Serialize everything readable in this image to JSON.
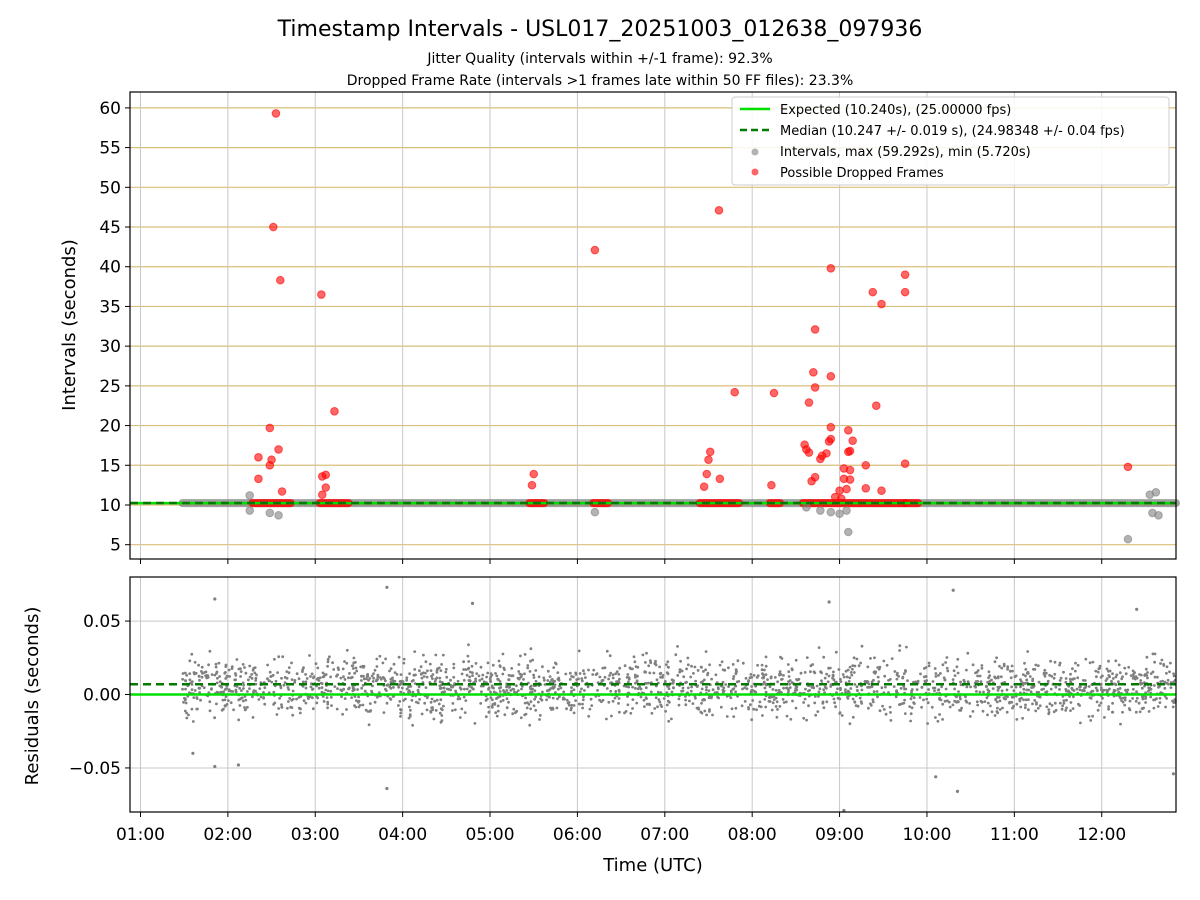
{
  "title": "Timestamp Intervals - USL017_20251003_012638_097936",
  "subtitle_1": "Jitter Quality (intervals within +/-1 frame): 92.3%",
  "subtitle_2": "Dropped Frame Rate (intervals >1 frames late within 50 FF files): 23.3%",
  "chart_data": [
    {
      "type": "scatter",
      "panel": "top",
      "xlabel": "",
      "ylabel": "Intervals (seconds)",
      "x_range_hours": [
        0.88,
        12.85
      ],
      "ylim": [
        3.2,
        62
      ],
      "yticks": [
        5,
        10,
        15,
        20,
        25,
        30,
        35,
        40,
        45,
        50,
        55,
        60
      ],
      "xticks": [
        "01:00",
        "02:00",
        "03:00",
        "04:00",
        "05:00",
        "06:00",
        "07:00",
        "08:00",
        "09:00",
        "10:00",
        "11:00",
        "12:00"
      ],
      "grid": true,
      "legend_position": "top-right",
      "expected": 10.24,
      "median": 10.247,
      "colors": {
        "expected": "#00e000",
        "median": "#007a00",
        "intervals": "#808080",
        "dropped": "#ff0000",
        "hgrid": "#d9bf77",
        "vgrid": "#c8c8c8"
      },
      "legend": [
        "Expected (10.240s), (25.00000 fps)",
        "Median (10.247 +/- 0.019 s), (24.98348 +/- 0.04 fps)",
        "Intervals, max (59.292s), min (5.720s)",
        "Possible Dropped Frames"
      ],
      "interval_bands": [
        [
          1.48,
          12.85,
          10.24
        ]
      ],
      "interval_outliers": [
        [
          2.25,
          11.2
        ],
        [
          2.25,
          9.3
        ],
        [
          2.48,
          9.0
        ],
        [
          2.58,
          8.7
        ],
        [
          6.2,
          9.1
        ],
        [
          8.62,
          9.7
        ],
        [
          8.78,
          9.3
        ],
        [
          8.9,
          9.1
        ],
        [
          9.0,
          8.9
        ],
        [
          9.08,
          9.3
        ],
        [
          9.1,
          6.6
        ],
        [
          12.3,
          5.7
        ],
        [
          12.55,
          11.3
        ],
        [
          12.62,
          11.6
        ],
        [
          12.58,
          9.0
        ],
        [
          12.65,
          8.7
        ]
      ],
      "dropped_bands": [
        [
          2.28,
          2.72,
          10.24
        ],
        [
          3.05,
          3.38,
          10.24
        ],
        [
          5.45,
          5.62,
          10.24
        ],
        [
          6.18,
          6.35,
          10.24
        ],
        [
          7.4,
          7.85,
          10.24
        ],
        [
          8.2,
          8.32,
          10.24
        ],
        [
          8.58,
          9.75,
          10.24
        ],
        [
          9.75,
          9.9,
          10.24
        ]
      ],
      "dropped_points": [
        [
          2.35,
          16.0
        ],
        [
          2.35,
          13.3
        ],
        [
          2.48,
          19.7
        ],
        [
          2.48,
          15.0
        ],
        [
          2.5,
          15.7
        ],
        [
          2.52,
          45.0
        ],
        [
          2.55,
          59.3
        ],
        [
          2.58,
          17.0
        ],
        [
          2.6,
          38.3
        ],
        [
          2.62,
          11.7
        ],
        [
          3.07,
          36.5
        ],
        [
          3.08,
          13.6
        ],
        [
          3.08,
          11.3
        ],
        [
          3.12,
          13.8
        ],
        [
          3.12,
          12.2
        ],
        [
          3.22,
          21.8
        ],
        [
          5.48,
          12.5
        ],
        [
          5.5,
          13.9
        ],
        [
          6.2,
          42.1
        ],
        [
          7.45,
          12.3
        ],
        [
          7.48,
          13.9
        ],
        [
          7.5,
          15.7
        ],
        [
          7.52,
          16.7
        ],
        [
          7.62,
          47.1
        ],
        [
          7.63,
          13.3
        ],
        [
          7.8,
          24.2
        ],
        [
          8.22,
          12.5
        ],
        [
          8.25,
          24.1
        ],
        [
          8.6,
          17.6
        ],
        [
          8.62,
          17.0
        ],
        [
          8.65,
          16.6
        ],
        [
          8.65,
          22.9
        ],
        [
          8.68,
          13.0
        ],
        [
          8.7,
          26.7
        ],
        [
          8.72,
          32.1
        ],
        [
          8.72,
          24.8
        ],
        [
          8.72,
          13.5
        ],
        [
          8.78,
          15.8
        ],
        [
          8.8,
          16.2
        ],
        [
          8.85,
          16.5
        ],
        [
          8.88,
          18.0
        ],
        [
          8.9,
          18.3
        ],
        [
          8.9,
          19.8
        ],
        [
          8.9,
          26.2
        ],
        [
          8.9,
          39.8
        ],
        [
          8.95,
          11.0
        ],
        [
          9.0,
          11.8
        ],
        [
          9.02,
          10.8
        ],
        [
          9.05,
          13.3
        ],
        [
          9.05,
          14.6
        ],
        [
          9.08,
          12.0
        ],
        [
          9.1,
          19.4
        ],
        [
          9.1,
          16.7
        ],
        [
          9.12,
          14.4
        ],
        [
          9.12,
          13.2
        ],
        [
          9.12,
          16.8
        ],
        [
          9.15,
          18.1
        ],
        [
          9.3,
          15.0
        ],
        [
          9.3,
          12.1
        ],
        [
          9.38,
          36.8
        ],
        [
          9.42,
          22.5
        ],
        [
          9.48,
          35.3
        ],
        [
          9.48,
          11.8
        ],
        [
          9.75,
          39.0
        ],
        [
          9.75,
          36.8
        ],
        [
          9.75,
          15.2
        ],
        [
          12.3,
          14.8
        ]
      ]
    },
    {
      "type": "scatter",
      "panel": "bottom",
      "xlabel": "Time (UTC)",
      "ylabel": "Residuals (seconds)",
      "x_range_hours": [
        0.88,
        12.85
      ],
      "ylim": [
        -0.08,
        0.08
      ],
      "yticks": [
        -0.05,
        0.0,
        0.05
      ],
      "ytick_labels": [
        "−0.05",
        "0.00",
        "0.05"
      ],
      "xticks": [
        "01:00",
        "02:00",
        "03:00",
        "04:00",
        "05:00",
        "06:00",
        "07:00",
        "08:00",
        "09:00",
        "10:00",
        "11:00",
        "12:00"
      ],
      "grid": true,
      "expected_residual": 0.0,
      "median_residual": 0.007,
      "series_x_range": [
        1.48,
        12.85
      ],
      "center": 0.005,
      "spread": 0.02,
      "colors": {
        "expected": "#00e000",
        "median": "#007a00",
        "points": "#808080",
        "grid": "#c8c8c8"
      },
      "notable_points": [
        [
          1.85,
          0.065
        ],
        [
          2.12,
          -0.048
        ],
        [
          1.85,
          -0.049
        ],
        [
          3.82,
          0.073
        ],
        [
          3.82,
          -0.064
        ],
        [
          4.8,
          0.062
        ],
        [
          8.88,
          0.063
        ],
        [
          9.05,
          -0.079
        ],
        [
          10.1,
          -0.056
        ],
        [
          10.3,
          0.071
        ],
        [
          10.35,
          -0.066
        ],
        [
          12.82,
          -0.054
        ],
        [
          12.4,
          0.058
        ],
        [
          1.6,
          -0.04
        ]
      ]
    }
  ]
}
